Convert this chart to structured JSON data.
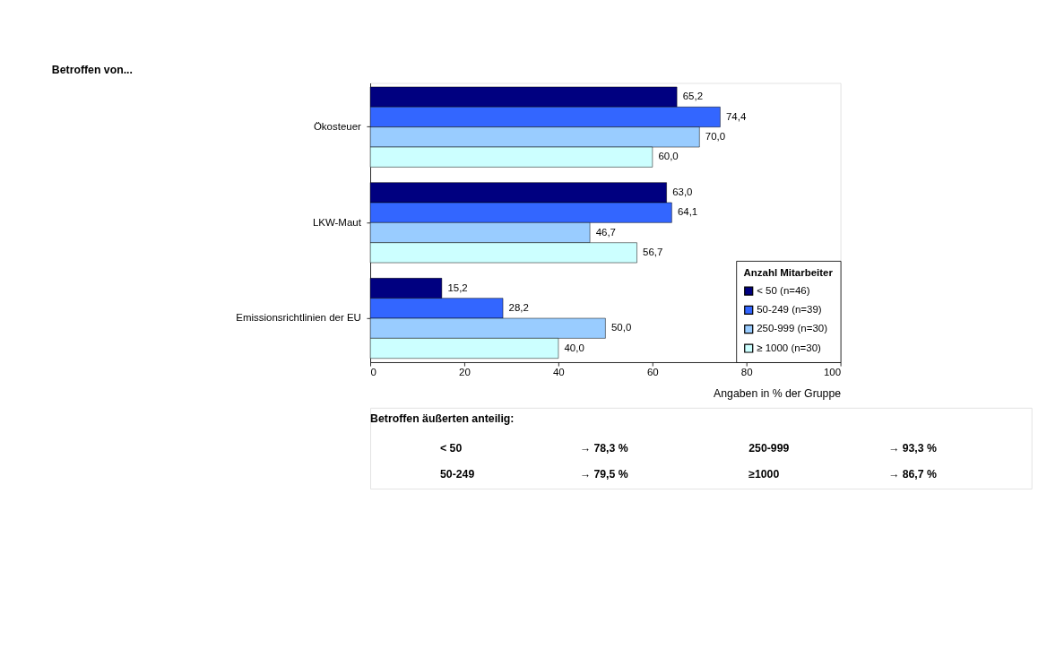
{
  "chart_data": {
    "type": "bar",
    "orientation": "horizontal",
    "title": "Betroffen von...",
    "xlabel": "Angaben in % der Gruppe",
    "categories": [
      "Ökosteuer",
      "LKW-Maut",
      "Emissionsrichtlinien der EU"
    ],
    "series": [
      {
        "name": "< 50 (n=46)",
        "color": "#000080",
        "values": [
          65.2,
          63.0,
          15.2
        ],
        "value_labels": [
          "65,2",
          "63,0",
          "15,2"
        ]
      },
      {
        "name": "50-249 (n=39)",
        "color": "#3366ff",
        "values": [
          74.4,
          64.1,
          28.2
        ],
        "value_labels": [
          "74,4",
          "64,1",
          "28,2"
        ]
      },
      {
        "name": "250-999 (n=30)",
        "color": "#99ccff",
        "values": [
          70.0,
          46.7,
          50.0
        ],
        "value_labels": [
          "70,0",
          "46,7",
          "50,0"
        ]
      },
      {
        "name": "≥ 1000 (n=30)",
        "color": "#ccffff",
        "values": [
          60.0,
          56.7,
          40.0
        ],
        "value_labels": [
          "60,0",
          "56,7",
          "40,0"
        ]
      }
    ],
    "legend_title": "Anzahl Mitarbeiter",
    "legend": "bottom right",
    "xlim": [
      0,
      100
    ],
    "xticks": [
      0,
      20,
      40,
      60,
      80,
      100
    ],
    "grid": false,
    "annotations": [
      "Betroffen äußerten anteilig:",
      "< 50",
      "→ 78,3 %",
      "50-249",
      "→ 79,5 %",
      "250-999",
      "→ 93,3 %",
      "≥1000",
      "→ 86,7 %"
    ]
  }
}
